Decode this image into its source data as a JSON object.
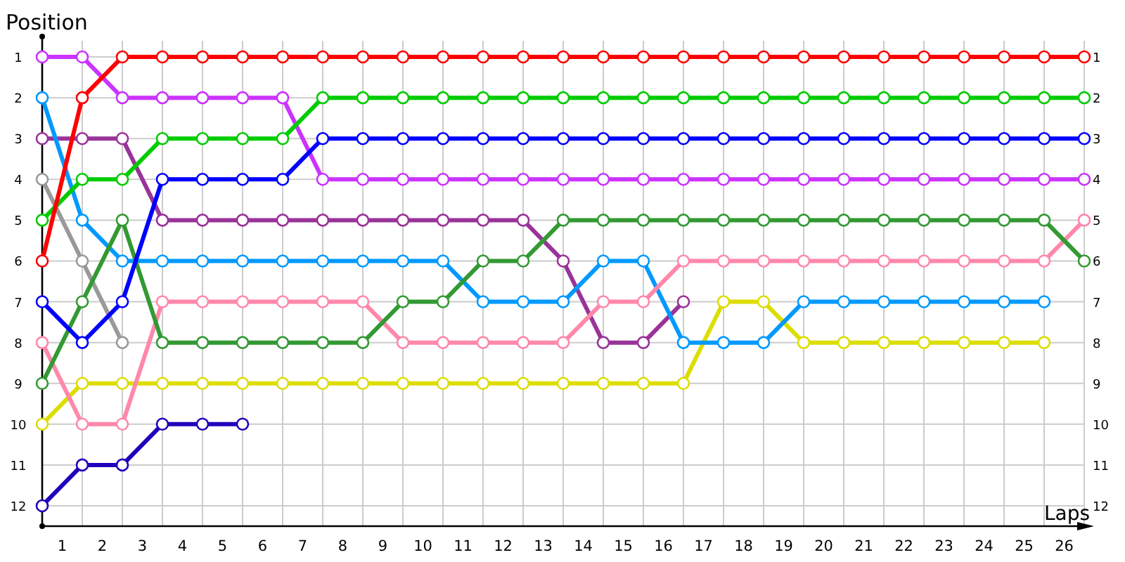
{
  "chart_data": {
    "type": "line",
    "xlabel": "Laps",
    "ylabel": "Position",
    "x": [
      0,
      1,
      2,
      3,
      4,
      5,
      6,
      7,
      8,
      9,
      10,
      11,
      12,
      13,
      14,
      15,
      16,
      17,
      18,
      19,
      20,
      21,
      22,
      23,
      24,
      25,
      26
    ],
    "xlim": [
      0,
      26
    ],
    "xticks": [
      {
        "value": 0.5,
        "label": "1"
      },
      {
        "value": 1,
        "label": null
      },
      {
        "value": 1.5,
        "label": "2"
      },
      {
        "value": 2,
        "label": null
      },
      {
        "value": 2.5,
        "label": "3"
      },
      {
        "value": 3,
        "label": null
      },
      {
        "value": 3.5,
        "label": "4"
      },
      {
        "value": 4,
        "label": null
      },
      {
        "value": 4.5,
        "label": "5"
      },
      {
        "value": 5,
        "label": null
      },
      {
        "value": 5.5,
        "label": "6"
      },
      {
        "value": 6,
        "label": null
      },
      {
        "value": 6.5,
        "label": "7"
      },
      {
        "value": 7,
        "label": null
      },
      {
        "value": 7.5,
        "label": "8"
      },
      {
        "value": 8,
        "label": null
      },
      {
        "value": 8.5,
        "label": "9"
      },
      {
        "value": 9,
        "label": null
      },
      {
        "value": 9.5,
        "label": "10"
      },
      {
        "value": 10,
        "label": null
      },
      {
        "value": 10.5,
        "label": "11"
      },
      {
        "value": 11,
        "label": null
      },
      {
        "value": 11.5,
        "label": "12"
      },
      {
        "value": 12,
        "label": null
      },
      {
        "value": 12.5,
        "label": "13"
      },
      {
        "value": 13,
        "label": null
      },
      {
        "value": 13.5,
        "label": "14"
      },
      {
        "value": 14,
        "label": null
      },
      {
        "value": 14.5,
        "label": "15"
      },
      {
        "value": 15,
        "label": null
      },
      {
        "value": 15.5,
        "label": "16"
      },
      {
        "value": 16,
        "label": null
      },
      {
        "value": 16.5,
        "label": "17"
      },
      {
        "value": 17,
        "label": null
      },
      {
        "value": 17.5,
        "label": "18"
      },
      {
        "value": 18,
        "label": null
      },
      {
        "value": 18.5,
        "label": "19"
      },
      {
        "value": 19,
        "label": null
      },
      {
        "value": 19.5,
        "label": "20"
      },
      {
        "value": 20,
        "label": null
      },
      {
        "value": 20.5,
        "label": "21"
      },
      {
        "value": 21,
        "label": null
      },
      {
        "value": 21.5,
        "label": "22"
      },
      {
        "value": 22,
        "label": null
      },
      {
        "value": 22.5,
        "label": "23"
      },
      {
        "value": 23,
        "label": null
      },
      {
        "value": 23.5,
        "label": "24"
      },
      {
        "value": 24,
        "label": null
      },
      {
        "value": 24.5,
        "label": "25"
      },
      {
        "value": 25,
        "label": null
      },
      {
        "value": 25.5,
        "label": "26"
      },
      {
        "value": 26,
        "label": null
      }
    ],
    "ylim": [
      12.5,
      0.5
    ],
    "yticks": [
      1,
      2,
      3,
      4,
      5,
      6,
      7,
      8,
      9,
      10,
      11,
      12
    ],
    "y2lim": [
      12.5,
      0.5
    ],
    "y2ticks": [
      1,
      2,
      3,
      4,
      5,
      6,
      7,
      8,
      9,
      10,
      11,
      12
    ],
    "grid": true,
    "marker": "circle",
    "line_style": "solid",
    "series": [
      {
        "color": "#999999",
        "values": [
          4,
          6,
          8,
          null,
          null,
          null,
          null,
          null,
          null,
          null,
          null,
          null,
          null,
          null,
          null,
          null,
          null,
          null,
          null,
          null,
          null,
          null,
          null,
          null,
          null,
          null,
          null
        ]
      },
      {
        "color": "#2200bb",
        "values": [
          12,
          11,
          11,
          10,
          10,
          10,
          null,
          null,
          null,
          null,
          null,
          null,
          null,
          null,
          null,
          null,
          null,
          null,
          null,
          null,
          null,
          null,
          null,
          null,
          null,
          null,
          null
        ]
      },
      {
        "color": "#993399",
        "values": [
          3,
          3,
          3,
          5,
          5,
          5,
          5,
          5,
          5,
          5,
          5,
          5,
          5,
          6,
          8,
          8,
          7,
          null,
          null,
          null,
          null,
          null,
          null,
          null,
          null,
          null,
          null
        ]
      },
      {
        "color": "#dddd00",
        "values": [
          10,
          9,
          9,
          9,
          9,
          9,
          9,
          9,
          9,
          9,
          9,
          9,
          9,
          9,
          9,
          9,
          9,
          7,
          7,
          8,
          8,
          8,
          8,
          8,
          8,
          8,
          null
        ]
      },
      {
        "color": "#0099ff",
        "values": [
          2,
          5,
          6,
          6,
          6,
          6,
          6,
          6,
          6,
          6,
          6,
          7,
          7,
          7,
          6,
          6,
          8,
          8,
          8,
          7,
          7,
          7,
          7,
          7,
          7,
          7,
          null
        ]
      },
      {
        "color": "#ff88aa",
        "values": [
          8,
          10,
          10,
          7,
          7,
          7,
          7,
          7,
          7,
          8,
          8,
          8,
          8,
          8,
          7,
          7,
          6,
          6,
          6,
          6,
          6,
          6,
          6,
          6,
          6,
          6,
          5
        ]
      },
      {
        "color": "#339933",
        "values": [
          9,
          7,
          5,
          8,
          8,
          8,
          8,
          8,
          8,
          7,
          7,
          6,
          6,
          5,
          5,
          5,
          5,
          5,
          5,
          5,
          5,
          5,
          5,
          5,
          5,
          5,
          6
        ]
      },
      {
        "color": "#cc33ff",
        "values": [
          1,
          1,
          2,
          2,
          2,
          2,
          2,
          4,
          4,
          4,
          4,
          4,
          4,
          4,
          4,
          4,
          4,
          4,
          4,
          4,
          4,
          4,
          4,
          4,
          4,
          4,
          4
        ]
      },
      {
        "color": "#0000ff",
        "values": [
          7,
          8,
          7,
          4,
          4,
          4,
          4,
          3,
          3,
          3,
          3,
          3,
          3,
          3,
          3,
          3,
          3,
          3,
          3,
          3,
          3,
          3,
          3,
          3,
          3,
          3,
          3
        ]
      },
      {
        "color": "#00cc00",
        "values": [
          5,
          4,
          4,
          3,
          3,
          3,
          3,
          2,
          2,
          2,
          2,
          2,
          2,
          2,
          2,
          2,
          2,
          2,
          2,
          2,
          2,
          2,
          2,
          2,
          2,
          2,
          2
        ]
      },
      {
        "color": "#ff0000",
        "values": [
          6,
          2,
          1,
          1,
          1,
          1,
          1,
          1,
          1,
          1,
          1,
          1,
          1,
          1,
          1,
          1,
          1,
          1,
          1,
          1,
          1,
          1,
          1,
          1,
          1,
          1,
          1
        ]
      }
    ]
  }
}
